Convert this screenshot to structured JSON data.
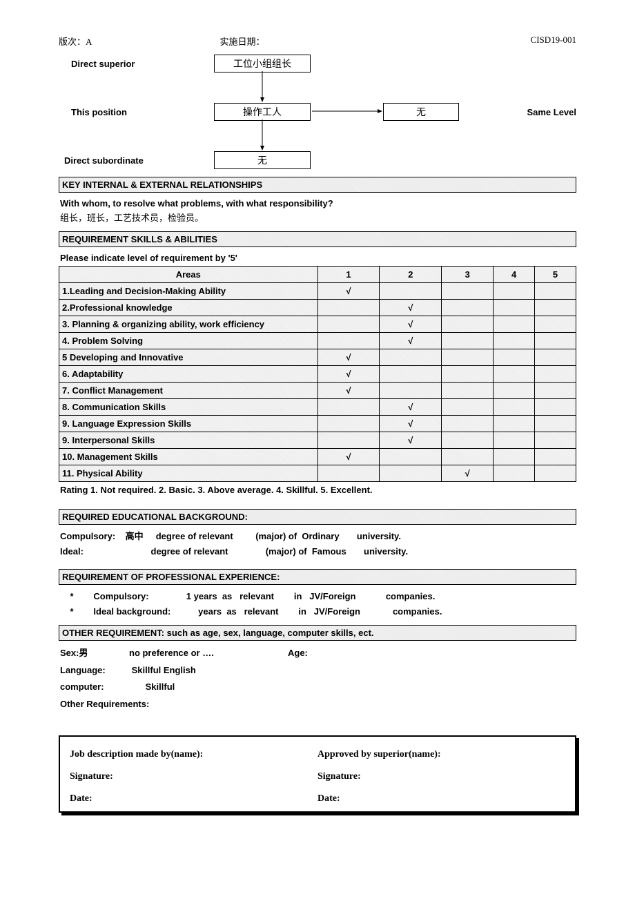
{
  "header": {
    "version": "版次：A",
    "date_label": "实施日期：",
    "doc_no": "CISD19-001"
  },
  "org": {
    "direct_superior_label": "Direct superior",
    "this_position_label": "This position",
    "direct_subordinate_label": "Direct subordinate",
    "same_level_label": "Same Level",
    "superior_box": "工位小组组长",
    "position_box": "操作工人",
    "subordinate_box": "无",
    "same_level_box": "无"
  },
  "relationships": {
    "header": "KEY INTERNAL & EXTERNAL RELATIONSHIPS",
    "prompt": "With whom, to resolve what problems, with what responsibility?",
    "answer": "组长，班长，工艺技术员，检验员。"
  },
  "skills": {
    "header": "REQUIREMENT SKILLS & ABILITIES",
    "prompt": "Please indicate level of requirement by '5'",
    "columns": [
      "Areas",
      "1",
      "2",
      "3",
      "4",
      "5"
    ],
    "column_widths": [
      "50%",
      "12%",
      "12%",
      "10%",
      "8%",
      "8%"
    ],
    "check": "√",
    "rows": [
      {
        "area": "1.Leading and Decision-Making Ability",
        "level": 1
      },
      {
        "area": "2.Professional knowledge",
        "level": 2
      },
      {
        "area": "3. Planning & organizing ability, work efficiency",
        "level": 2
      },
      {
        "area": "4. Problem Solving",
        "level": 2
      },
      {
        "area": "5 Developing and Innovative",
        "level": 1
      },
      {
        "area": "6. Adaptability",
        "level": 1
      },
      {
        "area": "7. Conflict Management",
        "level": 1
      },
      {
        "area": "8. Communication Skills",
        "level": 2
      },
      {
        "area": "9. Language Expression Skills",
        "level": 2
      },
      {
        "area": "9. Interpersonal Skills",
        "level": 2
      },
      {
        "area": "10. Management Skills",
        "level": 1
      },
      {
        "area": "11. Physical Ability",
        "level": 3
      }
    ],
    "rating_legend": "Rating    1. Not required.         2. Basic.         3. Above average.         4. Skillful.       5. Excellent."
  },
  "education": {
    "header": "REQUIRED EDUCATIONAL BACKGROUND:",
    "compulsory_label": "Compulsory:",
    "compulsory_degree": "高中",
    "degree_text": "degree of relevant",
    "major_ord": "(major) of  Ordinary",
    "university": "university.",
    "ideal_label": "Ideal:",
    "major_fam": "(major) of  Famous"
  },
  "experience": {
    "header": "REQUIREMENT OF PROFESSIONAL EXPERIENCE:",
    "bullet": "*",
    "compulsory_label": "Compulsory:",
    "compulsory_years": "1 years  as   relevant",
    "in_jv": "in   JV/Foreign",
    "companies": "companies.",
    "ideal_label": "Ideal background:",
    "ideal_years": "years  as   relevant"
  },
  "other": {
    "header": "OTHER REQUIREMENT: such as age, sex, language, computer skills, ect.",
    "sex_label": "Sex:",
    "sex_value": "男",
    "no_pref": "no preference or ….",
    "age_label": "Age:",
    "lang_label": "Language:",
    "lang_value": "Skillful English",
    "comp_label": "computer:",
    "comp_value": "Skillful",
    "other_label": "Other Requirements:"
  },
  "signature": {
    "made_by": "Job description made by(name):",
    "approved_by": "Approved by superior(name):",
    "sig": "Signature:",
    "date": "Date:"
  }
}
